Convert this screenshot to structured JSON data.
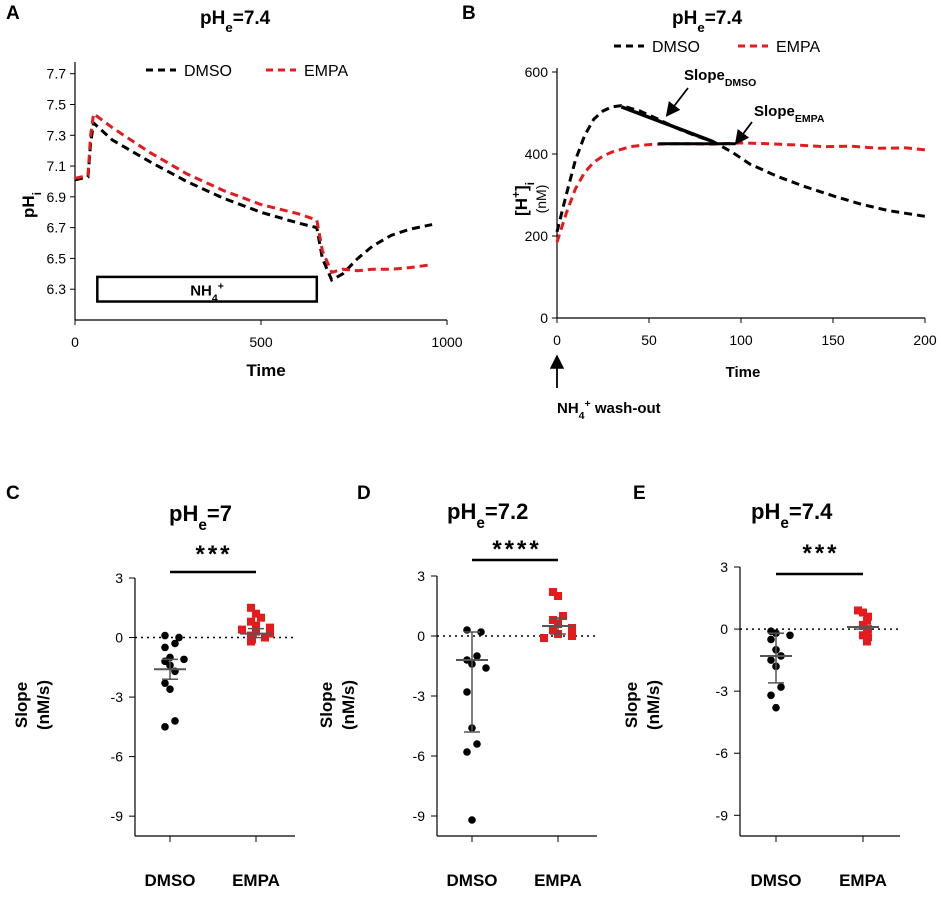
{
  "chart_data": [
    {
      "panel": "A",
      "type": "line",
      "title_main": "pH",
      "title_sub": "e",
      "title_rest": "=7.4",
      "xlabel": "Time",
      "ylabel_main": "pH",
      "ylabel_sub": "i",
      "xlim": [
        0,
        1000
      ],
      "ylim": [
        6.1,
        7.75
      ],
      "xticks": [
        0,
        500,
        1000
      ],
      "xtick_labels": [
        "0",
        "500",
        "1000"
      ],
      "yticks": [
        6.3,
        6.5,
        6.7,
        6.9,
        7.1,
        7.3,
        7.5,
        7.7
      ],
      "ytick_labels": [
        "6.3",
        "6.5",
        "6.7",
        "6.9",
        "7.1",
        "7.3",
        "7.5",
        "7.7"
      ],
      "box_label_main": "NH",
      "box_label_sub": "4",
      "box_label_sup": "+",
      "box_range": [
        60,
        650
      ],
      "box_y": [
        6.22,
        6.38
      ],
      "series": [
        {
          "name": "DMSO",
          "color": "#000000",
          "x": [
            0,
            35,
            42,
            50,
            100,
            200,
            300,
            400,
            500,
            600,
            650,
            665,
            690,
            720,
            760,
            800,
            850,
            900,
            960
          ],
          "y": [
            7.01,
            7.03,
            7.25,
            7.38,
            7.27,
            7.13,
            7.0,
            6.89,
            6.8,
            6.73,
            6.7,
            6.5,
            6.36,
            6.4,
            6.5,
            6.58,
            6.65,
            6.69,
            6.72
          ]
        },
        {
          "name": "EMPA",
          "color": "#e41a1c",
          "x": [
            0,
            35,
            42,
            50,
            100,
            200,
            300,
            400,
            500,
            600,
            650,
            665,
            690,
            720,
            760,
            800,
            850,
            900,
            960
          ],
          "y": [
            7.02,
            7.04,
            7.3,
            7.44,
            7.35,
            7.19,
            7.05,
            6.94,
            6.85,
            6.79,
            6.75,
            6.55,
            6.41,
            6.43,
            6.42,
            6.43,
            6.43,
            6.44,
            6.46
          ]
        }
      ]
    },
    {
      "panel": "B",
      "type": "line",
      "title_main": "pH",
      "title_sub": "e",
      "title_rest": "=7.4",
      "xlabel": "Time",
      "ylabel_main": "[H",
      "ylabel_sup": "+",
      "ylabel_rest": "]",
      "ylabel_sub": "i",
      "ylabel_unit": "(nM)",
      "xlim": [
        0,
        200
      ],
      "ylim": [
        0,
        600
      ],
      "xticks": [
        0,
        50,
        100,
        150,
        200
      ],
      "xtick_labels": [
        "0",
        "50",
        "100",
        "150",
        "200"
      ],
      "yticks": [
        0,
        200,
        400,
        600
      ],
      "ytick_labels": [
        "0",
        "200",
        "400",
        "600"
      ],
      "annotation_main": "NH",
      "annotation_sub": "4",
      "annotation_sup": "+",
      "annotation_rest": " wash-out",
      "slope_dmso_main": "Slope",
      "slope_dmso_sub": "DMSO",
      "slope_emsa_main": "Slope",
      "slope_empa_sub": "EMPA",
      "slope_dmso_line": {
        "x": [
          35,
          85
        ],
        "y": [
          515,
          430
        ]
      },
      "slope_empa_line": {
        "x": [
          55,
          97
        ],
        "y": [
          425,
          425
        ]
      },
      "series": [
        {
          "name": "DMSO",
          "color": "#000000",
          "x": [
            0,
            5,
            10,
            15,
            20,
            25,
            30,
            35,
            45,
            55,
            65,
            75,
            85,
            95,
            105,
            120,
            135,
            150,
            165,
            180,
            200
          ],
          "y": [
            210,
            300,
            385,
            445,
            485,
            505,
            515,
            518,
            505,
            485,
            463,
            445,
            430,
            405,
            375,
            345,
            320,
            298,
            278,
            262,
            248
          ]
        },
        {
          "name": "EMPA",
          "color": "#e41a1c",
          "x": [
            0,
            5,
            10,
            15,
            20,
            25,
            30,
            40,
            50,
            60,
            70,
            85,
            100,
            115,
            130,
            145,
            160,
            175,
            190,
            200
          ],
          "y": [
            185,
            255,
            315,
            355,
            380,
            395,
            405,
            418,
            423,
            425,
            425,
            424,
            427,
            425,
            422,
            418,
            419,
            414,
            415,
            410
          ]
        }
      ]
    },
    {
      "panel": "C",
      "type": "scatter",
      "title_main": "pH",
      "title_sub": "e",
      "title_rest": "=7",
      "ylabel_main": "Slope",
      "ylabel_unit": "(nM/s)",
      "ylim": [
        -10,
        3.2
      ],
      "yticks": [
        3,
        0,
        -3,
        -6,
        -9
      ],
      "ytick_labels": [
        "3",
        "0",
        "-3",
        "-6",
        "-9"
      ],
      "categories": [
        "DMSO",
        "EMPA"
      ],
      "significance": "***",
      "series": [
        {
          "name": "DMSO",
          "color": "#000000",
          "mean": -1.6,
          "err_low": -2.1,
          "err_high": -1.1,
          "values": [
            0.1,
            0.0,
            -0.3,
            -0.5,
            -1.0,
            -1.1,
            -1.2,
            -1.4,
            -1.7,
            -2.3,
            -2.6,
            -4.2,
            -4.5
          ]
        },
        {
          "name": "EMPA",
          "color": "#e41a1c",
          "mean": 0.2,
          "err_low": 0.0,
          "err_high": 0.45,
          "values": [
            1.5,
            1.2,
            1.0,
            0.8,
            0.6,
            0.5,
            0.4,
            0.3,
            0.2,
            0.1,
            0.0,
            -0.1,
            -0.2
          ]
        }
      ]
    },
    {
      "panel": "D",
      "type": "scatter",
      "title_main": "pH",
      "title_sub": "e",
      "title_rest": "=7.2",
      "ylabel_main": "Slope",
      "ylabel_unit": "(nM/s)",
      "ylim": [
        -10,
        3.2
      ],
      "yticks": [
        3,
        0,
        -3,
        -6,
        -9
      ],
      "ytick_labels": [
        "3",
        "0",
        "-3",
        "-6",
        "-9"
      ],
      "categories": [
        "DMSO",
        "EMPA"
      ],
      "significance": "****",
      "series": [
        {
          "name": "DMSO",
          "color": "#000000",
          "mean": -1.2,
          "err_low": -4.8,
          "err_high": 0.2,
          "values": [
            0.3,
            0.2,
            -1.0,
            -1.2,
            -1.4,
            -1.6,
            -2.8,
            -4.6,
            -5.4,
            -5.8,
            -9.2
          ]
        },
        {
          "name": "EMPA",
          "color": "#e41a1c",
          "mean": 0.5,
          "err_low": 0.1,
          "err_high": 0.9,
          "values": [
            2.2,
            2.0,
            1.0,
            0.8,
            0.6,
            0.4,
            0.3,
            0.1,
            0.0,
            -0.1
          ]
        }
      ]
    },
    {
      "panel": "E",
      "type": "scatter",
      "title_main": "pH",
      "title_sub": "e",
      "title_rest": "=7.4",
      "ylabel_main": "Slope",
      "ylabel_unit": "(nM/s)",
      "ylim": [
        -10,
        3.2
      ],
      "yticks": [
        3,
        0,
        -3,
        -6,
        -9
      ],
      "ytick_labels": [
        "3",
        "0",
        "-3",
        "-6",
        "-9"
      ],
      "categories": [
        "DMSO",
        "EMPA"
      ],
      "significance": "***",
      "series": [
        {
          "name": "DMSO",
          "color": "#000000",
          "mean": -1.3,
          "err_low": -2.6,
          "err_high": -0.2,
          "values": [
            -0.1,
            -0.2,
            -0.3,
            -0.5,
            -1.0,
            -1.3,
            -1.5,
            -1.8,
            -2.8,
            -3.2,
            -3.8
          ]
        },
        {
          "name": "EMPA",
          "color": "#e41a1c",
          "mean": 0.1,
          "err_low": 0.0,
          "err_high": 0.1,
          "values": [
            0.9,
            0.8,
            0.6,
            0.4,
            0.2,
            0.0,
            -0.1,
            -0.3,
            -0.4,
            -0.6
          ]
        }
      ]
    }
  ],
  "legend": [
    {
      "name": "DMSO",
      "color": "#000000"
    },
    {
      "name": "EMPA",
      "color": "#e41a1c"
    }
  ]
}
